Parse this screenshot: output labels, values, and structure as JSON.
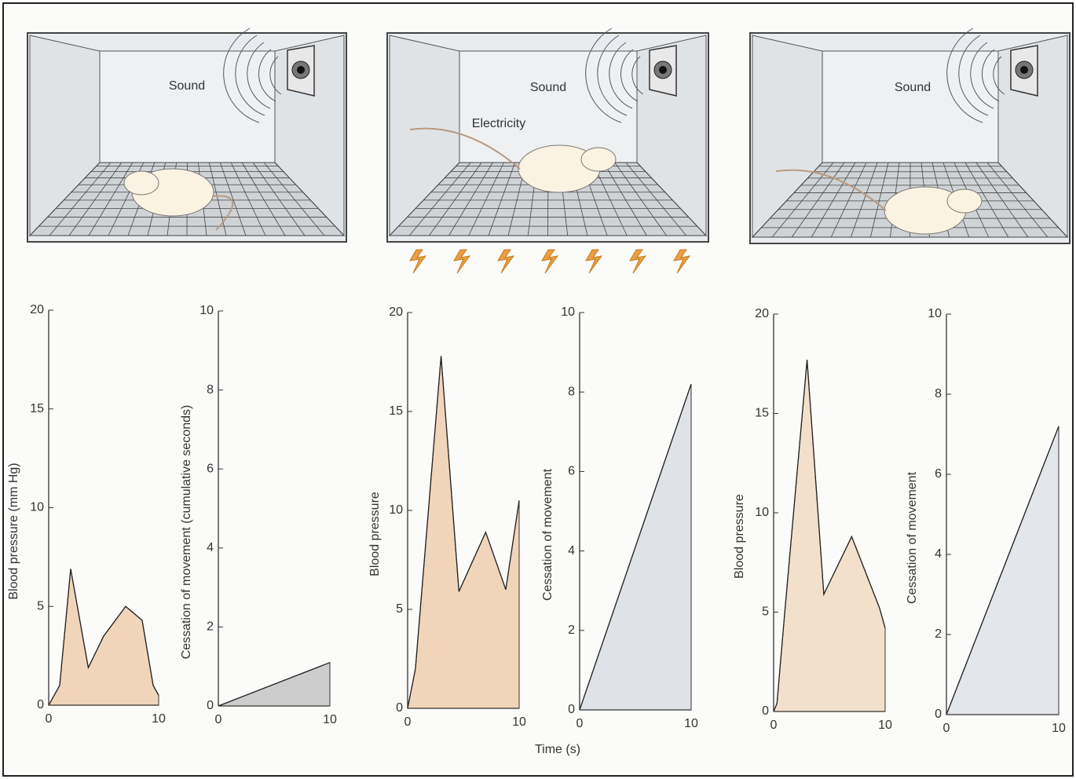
{
  "scenes": [
    {
      "label": "Sound"
    },
    {
      "label": "Sound",
      "extra": "Electricity"
    },
    {
      "label": "Sound"
    }
  ],
  "x_label": "Time (s)",
  "chart_data": [
    {
      "type": "area",
      "y_label": "Blood pressure (mm Hg)",
      "color": "#f1d5ba",
      "x": [
        0,
        1,
        2,
        3.6,
        5,
        7,
        8.5,
        9.5,
        10
      ],
      "values": [
        0,
        1,
        6.9,
        1.9,
        3.5,
        5,
        4.3,
        1,
        0.5
      ],
      "xlim": [
        0,
        10
      ],
      "xticks": [
        0,
        10
      ],
      "ylim": [
        0,
        20
      ],
      "yticks": [
        0,
        5,
        10,
        15,
        20
      ]
    },
    {
      "type": "area",
      "y_label": "Cessation of movement (cumulative seconds)",
      "color": "#cdcdcd",
      "x": [
        0,
        10
      ],
      "values": [
        0,
        1.1
      ],
      "xlim": [
        0,
        10
      ],
      "xticks": [
        0,
        10
      ],
      "ylim": [
        0,
        10
      ],
      "yticks": [
        0,
        2,
        4,
        6,
        8,
        10
      ]
    },
    {
      "type": "area",
      "y_label": "Blood pressure",
      "color": "#f1d5ba",
      "x": [
        0,
        0.7,
        3,
        4.6,
        7,
        8.8,
        10
      ],
      "values": [
        0,
        2,
        17.8,
        5.9,
        8.9,
        6,
        10.5
      ],
      "xlim": [
        0,
        10
      ],
      "xticks": [
        0,
        10
      ],
      "ylim": [
        0,
        20
      ],
      "yticks": [
        0,
        5,
        10,
        15,
        20
      ]
    },
    {
      "type": "area",
      "y_label": "Cessation of movement",
      "color": "#dfe3e7",
      "x": [
        0,
        10
      ],
      "values": [
        0,
        8.2
      ],
      "xlim": [
        0,
        10
      ],
      "xticks": [
        0,
        10
      ],
      "ylim": [
        0,
        10
      ],
      "yticks": [
        0,
        2,
        4,
        6,
        8,
        10
      ]
    },
    {
      "type": "area",
      "y_label": "Blood pressure",
      "color": "#f3e0cb",
      "x": [
        0,
        0.3,
        1,
        3,
        4.5,
        7,
        9.5,
        10
      ],
      "values": [
        0,
        0.4,
        5,
        17.7,
        5.9,
        8.8,
        5.2,
        4.2
      ],
      "xlim": [
        0,
        10
      ],
      "xticks": [
        0,
        10
      ],
      "ylim": [
        0,
        20
      ],
      "yticks": [
        0,
        5,
        10,
        15,
        20
      ]
    },
    {
      "type": "area",
      "y_label": "Cessation of movement",
      "color": "#e3e6ea",
      "x": [
        0,
        10
      ],
      "values": [
        0,
        7.2
      ],
      "xlim": [
        0,
        10
      ],
      "xticks": [
        0,
        10
      ],
      "ylim": [
        0,
        10
      ],
      "yticks": [
        0,
        2,
        4,
        6,
        8,
        10
      ]
    }
  ]
}
